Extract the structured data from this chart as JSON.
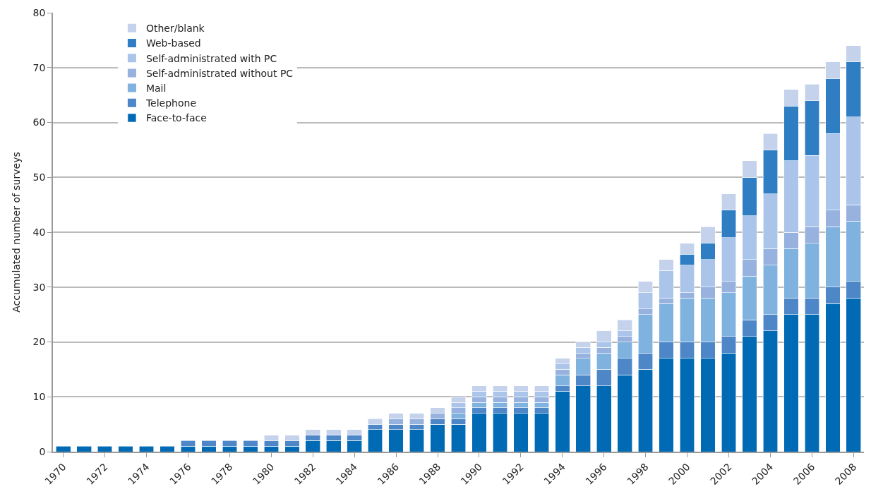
{
  "chart_data": {
    "type": "bar",
    "stacked": true,
    "ylabel": "Accumulated number of surveys",
    "categories": [
      "1970",
      null,
      "1972",
      null,
      "1974",
      null,
      "1976",
      null,
      "1978",
      null,
      "1980",
      null,
      "1982",
      null,
      "1984",
      null,
      "1986",
      null,
      "1988",
      null,
      "1990",
      null,
      "1992",
      null,
      "1994",
      null,
      "1996",
      null,
      "1998",
      null,
      "2000",
      null,
      "2002",
      null,
      "2004",
      null,
      "2006",
      null,
      "2008"
    ],
    "series": [
      {
        "name": "Face-to-face",
        "color": "#006ab4",
        "values": [
          1,
          1,
          1,
          1,
          1,
          1,
          1,
          1,
          1,
          1,
          1,
          1,
          2,
          2,
          2,
          4,
          4,
          4,
          5,
          5,
          7,
          7,
          7,
          7,
          11,
          12,
          12,
          14,
          15,
          17,
          17,
          17,
          18,
          21,
          22,
          25,
          25,
          27,
          28
        ]
      },
      {
        "name": "Telephone",
        "color": "#4d87c7",
        "values": [
          0,
          0,
          0,
          0,
          0,
          0,
          1,
          1,
          1,
          1,
          1,
          1,
          1,
          1,
          1,
          1,
          1,
          1,
          1,
          1,
          1,
          1,
          1,
          1,
          1,
          2,
          3,
          3,
          3,
          3,
          3,
          3,
          3,
          3,
          3,
          3,
          3,
          3,
          3
        ]
      },
      {
        "name": "Mail",
        "color": "#7fb2df",
        "values": [
          0,
          0,
          0,
          0,
          0,
          0,
          0,
          0,
          0,
          0,
          0,
          0,
          0,
          0,
          0,
          0,
          0,
          0,
          0,
          1,
          1,
          1,
          1,
          1,
          2,
          3,
          3,
          3,
          7,
          7,
          8,
          8,
          8,
          8,
          9,
          9,
          10,
          11,
          11
        ]
      },
      {
        "name": "Self-administrated without PC",
        "color": "#97b2de",
        "values": [
          0,
          0,
          0,
          0,
          0,
          0,
          0,
          0,
          0,
          0,
          0,
          0,
          0,
          0,
          0,
          0,
          1,
          1,
          1,
          1,
          1,
          1,
          1,
          1,
          1,
          1,
          1,
          1,
          1,
          1,
          1,
          2,
          2,
          3,
          3,
          3,
          3,
          3,
          3
        ]
      },
      {
        "name": "Self-administrated with PC",
        "color": "#abc5ea",
        "values": [
          0,
          0,
          0,
          0,
          0,
          0,
          0,
          0,
          0,
          0,
          0,
          0,
          0,
          0,
          0,
          0,
          0,
          0,
          0,
          1,
          1,
          1,
          1,
          1,
          1,
          1,
          1,
          1,
          3,
          5,
          5,
          5,
          8,
          8,
          10,
          13,
          13,
          14,
          16
        ]
      },
      {
        "name": "Web-based",
        "color": "#2f7ec4",
        "values": [
          0,
          0,
          0,
          0,
          0,
          0,
          0,
          0,
          0,
          0,
          0,
          0,
          0,
          0,
          0,
          0,
          0,
          0,
          0,
          0,
          0,
          0,
          0,
          0,
          0,
          0,
          0,
          0,
          0,
          0,
          2,
          3,
          5,
          7,
          8,
          10,
          10,
          10,
          10
        ]
      },
      {
        "name": "Other/blank",
        "color": "#c5d2ec",
        "values": [
          0,
          0,
          0,
          0,
          0,
          0,
          0,
          0,
          0,
          0,
          1,
          1,
          1,
          1,
          1,
          1,
          1,
          1,
          1,
          1,
          1,
          1,
          1,
          1,
          1,
          1,
          2,
          2,
          2,
          2,
          2,
          3,
          3,
          3,
          3,
          3,
          3,
          3,
          3
        ]
      }
    ],
    "ylim": [
      0,
      80
    ],
    "yticks": [
      0,
      10,
      20,
      30,
      40,
      50,
      60,
      70,
      80
    ],
    "grid": "y",
    "legend": "top left"
  }
}
